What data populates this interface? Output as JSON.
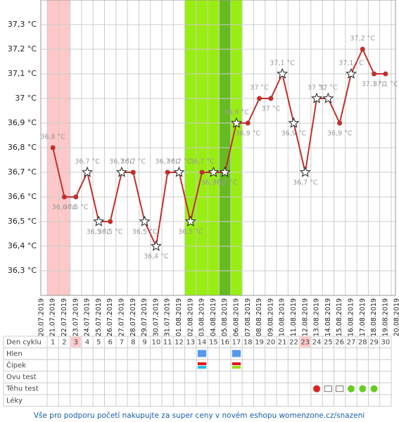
{
  "chart_data": {
    "type": "line",
    "x": [
      "20.07.2019",
      "21.07.2019",
      "22.07.2019",
      "23.07.2019",
      "24.07.2019",
      "25.07.2019",
      "26.07.2019",
      "27.07.2019",
      "28.07.2019",
      "29.07.2019",
      "30.07.2019",
      "31.07.2019",
      "01.08.2019",
      "02.08.2019",
      "03.08.2019",
      "04.08.2019",
      "05.08.2019",
      "06.08.2019",
      "07.08.2019",
      "08.08.2019",
      "09.08.2019",
      "10.08.2019",
      "11.08.2019",
      "12.08.2019",
      "13.08.2019",
      "14.08.2019",
      "15.08.2019",
      "16.08.2019",
      "17.08.2019",
      "18.08.2019",
      "19.08.2019",
      "20.08.2019"
    ],
    "series": [
      {
        "color": "#c0302c",
        "values": [
          null,
          36.8,
          36.6,
          36.6,
          36.7,
          36.5,
          36.5,
          36.7,
          36.7,
          36.5,
          36.4,
          36.7,
          36.7,
          36.5,
          36.7,
          36.7,
          36.7,
          36.9,
          36.9,
          37.0,
          37.0,
          37.1,
          36.9,
          36.7,
          37.0,
          37.0,
          36.9,
          37.1,
          37.2,
          37.1,
          37.1,
          null
        ],
        "value_labels": [
          null,
          "36,8 °C",
          "36,6 °C",
          "36,6 °C",
          "36,7 °C",
          "36,5 °C",
          "36,5 °C",
          "36,7 °C",
          "36,7 °C",
          "36,5 °C",
          "36,4 °C",
          "36,7 °C",
          "36,7 °C",
          "36,5 °C",
          "36,7 °C",
          "36,7 °C",
          "36,7 °C",
          "36,9 °C",
          "36,9 °C",
          "37 °C",
          "37 °C",
          "37,1 °C",
          "36,9 °C",
          "36,7 °C",
          "37 °C",
          "37 °C",
          "36,9 °C",
          "37,1 °C",
          "37,2 °C",
          "37,1 °C",
          "37,1 °C",
          null
        ],
        "markers": [
          null,
          "dot",
          "dot",
          "dot",
          "star",
          "star",
          "dot",
          "star",
          "dot",
          "star",
          "star",
          "dot",
          "star",
          "star",
          "dot",
          "star",
          "star",
          "star",
          "dot",
          "dot",
          "dot",
          "star",
          "star",
          "star",
          "star",
          "star",
          "dot",
          "star",
          "dot",
          "dot",
          "dot",
          null
        ]
      }
    ],
    "ylim": [
      36.2,
      37.4
    ],
    "yticks": [
      {
        "value": 36.3,
        "label": "36,3 °C"
      },
      {
        "value": 36.4,
        "label": "36,4 °C"
      },
      {
        "value": 36.5,
        "label": "36,5 °C"
      },
      {
        "value": 36.6,
        "label": "36,6 °C"
      },
      {
        "value": 36.7,
        "label": "36,7 °C"
      },
      {
        "value": 36.8,
        "label": "36,8 °C"
      },
      {
        "value": 36.9,
        "label": "36,9 °C"
      },
      {
        "value": 37.0,
        "label": "37 °C"
      },
      {
        "value": 37.1,
        "label": "37,1 °C"
      },
      {
        "value": 37.2,
        "label": "37,2 °C"
      },
      {
        "value": 37.3,
        "label": "37,3 °C"
      }
    ],
    "grid": true
  },
  "table": {
    "row_labels": [
      "Den cyklu",
      "Hlen",
      "Čípek",
      "Ovu test",
      "Těhu test",
      "Léky"
    ],
    "days": [
      1,
      2,
      3,
      4,
      5,
      6,
      7,
      8,
      9,
      10,
      11,
      12,
      13,
      14,
      15,
      16,
      17,
      18,
      19,
      20,
      21,
      22,
      23,
      24,
      25,
      26,
      27,
      28,
      29,
      30
    ]
  },
  "footer": "Vše pro podporu početí nakupujte za super ceny v novém eshopu womenzone.cz/snazeni"
}
